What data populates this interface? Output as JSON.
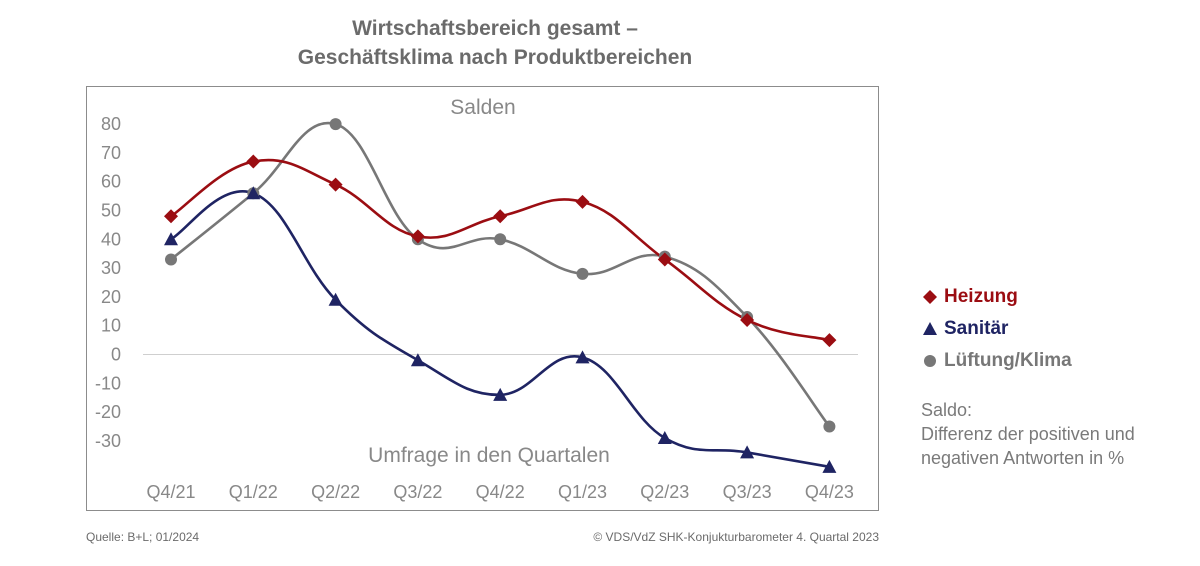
{
  "chart_data": {
    "type": "line",
    "title_line1": "Wirtschaftsbereich gesamt –",
    "title_line2": "Geschäftsklima nach Produktbereichen",
    "ylabel": "Salden",
    "xlabel": "Umfrage in den Quartalen",
    "categories": [
      "Q4/21",
      "Q1/22",
      "Q2/22",
      "Q3/22",
      "Q4/22",
      "Q1/23",
      "Q2/23",
      "Q3/23",
      "Q4/23"
    ],
    "yticks": [
      "80",
      "70",
      "60",
      "50",
      "40",
      "30",
      "20",
      "10",
      "0",
      "-10",
      "-20",
      "-30"
    ],
    "ylim": [
      -40,
      82
    ],
    "grid": false,
    "legend_position": "right",
    "series": [
      {
        "name": "Heizung",
        "color": "#9b0d12",
        "marker": "diamond",
        "values": [
          48,
          67,
          59,
          41,
          48,
          53,
          33,
          12,
          5
        ]
      },
      {
        "name": "Sanitär",
        "color": "#1f2463",
        "marker": "triangle",
        "values": [
          40,
          56,
          19,
          -2,
          -14,
          -1,
          -29,
          -34,
          -39
        ]
      },
      {
        "name": "Lüftung/Klima",
        "color": "#777777",
        "marker": "circle",
        "values": [
          33,
          56,
          80,
          40,
          40,
          28,
          34,
          13,
          -25
        ]
      }
    ]
  },
  "note": "Saldo:\nDifferenz der positiven und negativen Antworten in %",
  "source": "Quelle: B+L; 01/2024",
  "copyright": "© VDS/VdZ SHK-Konjukturbarometer 4. Quartal 2023"
}
